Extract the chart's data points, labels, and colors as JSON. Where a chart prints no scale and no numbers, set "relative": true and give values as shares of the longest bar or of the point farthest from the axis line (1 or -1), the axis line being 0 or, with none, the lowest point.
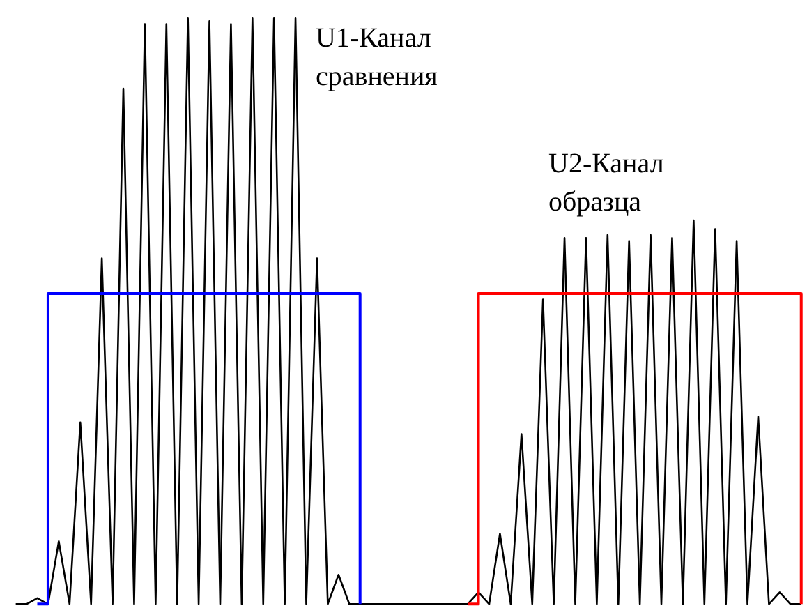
{
  "chart_data": {
    "type": "line",
    "relative": true,
    "tick_labels": false,
    "line_style": "solid",
    "annotations": [
      "U1-Канал\nсравнения",
      "U2-Канал\nобразца"
    ],
    "categories": [
      null,
      null,
      null,
      null,
      null,
      null,
      null,
      null,
      null,
      null,
      null,
      null,
      null,
      null,
      null,
      null,
      null,
      null,
      null,
      null,
      null,
      null,
      null,
      null,
      null,
      null,
      null,
      null,
      null,
      null,
      null,
      null,
      null,
      null,
      null,
      null,
      null,
      null,
      null,
      null,
      null,
      null,
      null,
      null,
      null,
      null,
      null,
      null,
      null,
      null,
      null,
      null,
      null,
      null,
      null,
      null,
      null,
      null,
      null,
      null,
      null,
      null,
      null,
      null,
      null,
      null,
      null,
      null,
      null,
      null,
      null,
      null,
      null,
      null
    ],
    "series": [
      {
        "color": "#000000",
        "values": [
          0,
          0,
          0.01,
          0,
          0.107,
          0,
          0.31,
          0,
          0.59,
          0,
          0.88,
          0,
          0.99,
          0,
          0.99,
          0,
          1,
          0,
          0.995,
          0,
          0.99,
          0,
          1,
          0,
          1,
          0,
          1,
          0,
          0.59,
          0,
          0.05,
          0,
          0,
          0,
          0,
          0,
          0,
          0,
          0,
          0,
          0,
          0,
          0,
          0.02,
          0,
          0.12,
          0,
          0.29,
          0,
          0.52,
          0,
          0.625,
          0,
          0.625,
          0,
          0.63,
          0,
          0.62,
          0,
          0.63,
          0,
          0.625,
          0,
          0.655,
          0,
          0.64,
          0,
          0.62,
          0,
          0.32,
          0,
          0.02,
          0,
          0
        ]
      },
      {
        "type": "step",
        "color": "#0000ff",
        "values": [
          null,
          null,
          0,
          0.53,
          0.53,
          0.53,
          0.53,
          0.53,
          0.53,
          0.53,
          0.53,
          0.53,
          0.53,
          0.53,
          0.53,
          0.53,
          0.53,
          0.53,
          0.53,
          0.53,
          0.53,
          0.53,
          0.53,
          0.53,
          0.53,
          0.53,
          0.53,
          0.53,
          0.53,
          0.53,
          0.53,
          0.53,
          0,
          null,
          null,
          null,
          null,
          null,
          null,
          null,
          null,
          null,
          null,
          null,
          null,
          null,
          null,
          null,
          null,
          null,
          null,
          null,
          null,
          null,
          null,
          null,
          null,
          null,
          null,
          null,
          null,
          null,
          null,
          null,
          null,
          null,
          null,
          null,
          null,
          null,
          null,
          null,
          null,
          null
        ]
      },
      {
        "type": "step",
        "color": "#ff0000",
        "values": [
          null,
          null,
          null,
          null,
          null,
          null,
          null,
          null,
          null,
          null,
          null,
          null,
          null,
          null,
          null,
          null,
          null,
          null,
          null,
          null,
          null,
          null,
          null,
          null,
          null,
          null,
          null,
          null,
          null,
          null,
          null,
          null,
          null,
          null,
          null,
          null,
          null,
          null,
          null,
          null,
          null,
          null,
          0,
          0.53,
          0.53,
          0.53,
          0.53,
          0.53,
          0.53,
          0.53,
          0.53,
          0.53,
          0.53,
          0.53,
          0.53,
          0.53,
          0.53,
          0.53,
          0.53,
          0.53,
          0.53,
          0.53,
          0.53,
          0.53,
          0.53,
          0.53,
          0.53,
          0.53,
          0.53,
          0.53,
          0.53,
          0.53,
          0.53,
          0
        ]
      }
    ]
  }
}
